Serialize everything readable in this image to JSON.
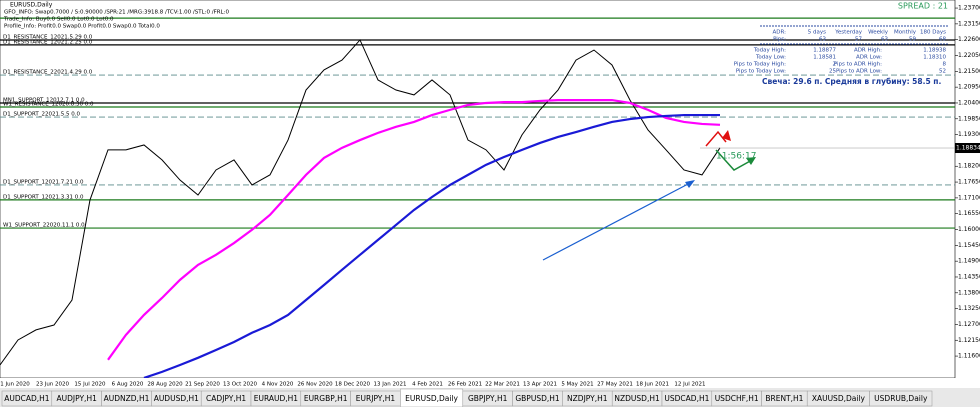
{
  "chart_data": {
    "type": "line",
    "symbol": "EURUSD,Daily",
    "info_lines": [
      "GFO_INFO: Swap0.7000 / S:0.90000 /SPR:21 /MRG:3918.8 /TCV:1.00 /STL:0 /FRL:0",
      "Trade_Info: Buy0.0 Sell0.0 Lot0.0 Lot0.0",
      "Profile_Info: Profit0.0 Swap0.0 Profit0.0 Swap0.0 Total0.0"
    ],
    "spread": "SPREAD : 21",
    "ylim": [
      1.1049,
      1.2398
    ],
    "yticks": [
      {
        "value": 1.237,
        "label": "1.23700"
      },
      {
        "value": 1.2315,
        "label": "1.23150"
      },
      {
        "value": 1.226,
        "label": "1.22600"
      },
      {
        "value": 1.2205,
        "label": "1.22050"
      },
      {
        "value": 1.215,
        "label": "1.21500"
      },
      {
        "value": 1.2095,
        "label": "1.20950"
      },
      {
        "value": 1.204,
        "label": "1.20400"
      },
      {
        "value": 1.1985,
        "label": "1.19850"
      },
      {
        "value": 1.193,
        "label": "1.19300"
      },
      {
        "value": 1.1875,
        "label": "1.18750"
      },
      {
        "value": 1.182,
        "label": "1.18200"
      },
      {
        "value": 1.1765,
        "label": "1.17650"
      },
      {
        "value": 1.171,
        "label": "1.17100"
      },
      {
        "value": 1.1655,
        "label": "1.16550"
      },
      {
        "value": 1.16,
        "label": "1.16000"
      },
      {
        "value": 1.1545,
        "label": "1.15450"
      },
      {
        "value": 1.149,
        "label": "1.14900"
      },
      {
        "value": 1.1435,
        "label": "1.14350"
      },
      {
        "value": 1.138,
        "label": "1.13800"
      },
      {
        "value": 1.1325,
        "label": "1.13250"
      },
      {
        "value": 1.127,
        "label": "1.12700"
      },
      {
        "value": 1.1215,
        "label": "1.12150"
      },
      {
        "value": 1.116,
        "label": "1.11600"
      }
    ],
    "current_price": {
      "value": 1.18834,
      "label": "1.18834"
    },
    "timer": "11:56:17",
    "date_labels": [
      "1 Jun 2020",
      "23 Jun 2020",
      "15 Jul 2020",
      "6 Aug 2020",
      "28 Aug 2020",
      "21 Sep 2020",
      "13 Oct 2020",
      "4 Nov 2020",
      "26 Nov 2020",
      "18 Dec 2020",
      "13 Jan 2021",
      "4 Feb 2021",
      "26 Feb 2021",
      "22 Mar 2021",
      "13 Apr 2021",
      "5 May 2021",
      "27 May 2021",
      "18 Jun 2021",
      "12 Jul 2021"
    ],
    "series": [
      {
        "color": "#000000",
        "values": [
          1.1129,
          1.1216,
          1.1251,
          1.1268,
          1.1355,
          1.1703,
          1.1877,
          1.1877,
          1.1894,
          1.1842,
          1.1772,
          1.172,
          1.1807,
          1.1842,
          1.1755,
          1.179,
          1.1911,
          1.2085,
          1.2155,
          1.2189,
          1.2259,
          1.212,
          1.2085,
          1.2068,
          1.212,
          1.2068,
          1.1911,
          1.1877,
          1.1807,
          1.1929,
          1.2016,
          1.2085,
          1.2189,
          1.2224,
          1.2172,
          1.205,
          1.1946,
          1.1877,
          1.1807,
          1.179,
          1.1884
        ]
      },
      {
        "color": "#ff00ff",
        "values": [
          null,
          null,
          null,
          null,
          null,
          null,
          1.1147,
          1.1234,
          1.1303,
          1.1362,
          1.1425,
          1.1477,
          1.1512,
          1.1553,
          1.1599,
          1.1651,
          1.172,
          1.179,
          1.1849,
          1.1884,
          1.1911,
          1.1936,
          1.1957,
          1.1974,
          1.1998,
          1.2016,
          1.2033,
          1.204,
          1.2043,
          1.2043,
          1.2047,
          1.205,
          1.205,
          1.205,
          1.205,
          1.204,
          1.2016,
          1.1988,
          1.1974,
          1.1967,
          1.1964
        ]
      },
      {
        "color": "#1a1ad6",
        "values": [
          null,
          null,
          null,
          null,
          null,
          null,
          null,
          null,
          1.1084,
          1.1105,
          1.1129,
          1.1154,
          1.1181,
          1.1209,
          1.1241,
          1.1268,
          1.1303,
          1.1355,
          1.1407,
          1.146,
          1.1512,
          1.1564,
          1.1616,
          1.1668,
          1.1713,
          1.1755,
          1.179,
          1.1825,
          1.1852,
          1.1877,
          1.1901,
          1.1922,
          1.1939,
          1.1957,
          1.1974,
          1.1984,
          1.1991,
          1.1995,
          1.1998,
          1.1998,
          1.1998
        ]
      }
    ],
    "levels": [
      {
        "value": 1.2335,
        "color": "#1b7a1b"
      },
      {
        "value": 1.2259,
        "label": "D1_RESISTANCE_12021.5.29 0.0",
        "color": "#000000"
      },
      {
        "value": 1.2242,
        "label": "D1_RESISTANCE_12021.2.25 0.0",
        "color": "#000000"
      },
      {
        "value": 1.2137,
        "label": "D1_RESISTANCE_22021.4.29 0.0",
        "color": "#5a8a8a",
        "dash": true
      },
      {
        "value": 1.204,
        "label": "MN1_SUPPORT_12012.7.1 0.0",
        "color": "#000000"
      },
      {
        "value": 1.2026,
        "label": "W1_RESISTANCE_12020.8.30 0.0",
        "color": "#1b7a1b"
      },
      {
        "value": 1.1991,
        "label": "D1_SUPPORT_22021.5.5 0.0",
        "color": "#5a8a8a",
        "dash": true
      },
      {
        "value": 1.1755,
        "label": "D1_SUPPORT_12021.7.21 0.0",
        "color": "#5a8a8a",
        "dash": true
      },
      {
        "value": 1.1703,
        "label": "D1_SUPPORT_12021.3.31 0.0",
        "color": "#1b7a1b"
      },
      {
        "value": 1.1605,
        "label": "W1_SUPPORT_22020.11.1 0.0",
        "color": "#1b7a1b"
      }
    ],
    "stats_table": [
      [
        "ADR:",
        "5 days",
        "Yesterday",
        "Weekly",
        "Monthly",
        "180 Days"
      ],
      [
        "Pips:",
        "63",
        "57",
        "63",
        "59",
        "68"
      ],
      [
        "Today High:",
        "1.18877",
        "ADR High:",
        "1.18938"
      ],
      [
        "Today Low:",
        "1.18581",
        "ADR Low:",
        "1.18310"
      ],
      [
        "Pips to Today High:",
        "2",
        "Pips to ADR High:",
        "8"
      ],
      [
        "Pips to Today Low:",
        "25",
        "Pips to ADR Low:",
        "52"
      ]
    ],
    "candle_note": "Свеча: 29.6 п. Средняя в глубину: 58.5 п.",
    "tabs": [
      "AUDCAD,H1",
      "AUDJPY,H1",
      "AUDNZD,H1",
      "AUDUSD,H1",
      "CADJPY,H1",
      "EURAUD,H1",
      "EURGBP,H1",
      "EURJPY,H1",
      "EURUSD,Daily",
      "GBPJPY,H1",
      "GBPUSD,H1",
      "NZDJPY,H1",
      "NZDUSD,H1",
      "USDCAD,H1",
      "USDCHF,H1",
      "BRENT,H1",
      "XAUUSD,Daily",
      "USDRUB,Daily"
    ],
    "active_tab": 8
  }
}
